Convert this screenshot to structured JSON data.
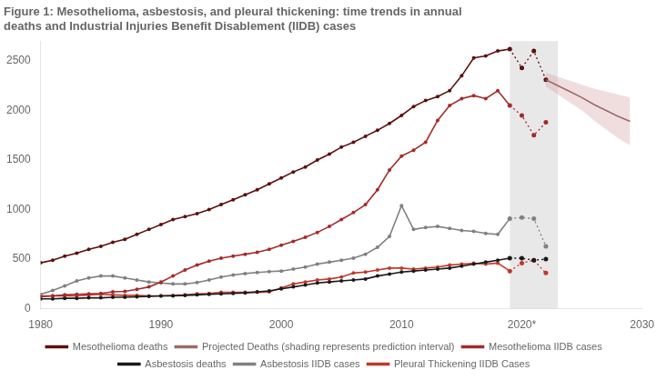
{
  "chart_data": {
    "type": "line",
    "title": [
      "Figure 1: Mesothelioma, asbestosis, and pleural thickening: time trends in annual",
      "deaths and Industrial Injuries Benefit Disablement (IIDB) cases"
    ],
    "xlim": [
      1980,
      2030
    ],
    "xticks": [
      1980,
      1990,
      2000,
      2010,
      {
        "value": 2020,
        "label": "2020*"
      },
      2030
    ],
    "ylim": [
      0,
      2700
    ],
    "yticks": [
      0,
      500,
      1000,
      1500,
      2000,
      2500
    ],
    "grid": false,
    "legend": "bottom",
    "span": {
      "x0": 2019,
      "x1": 2023,
      "color": "#d8d8d8"
    },
    "series": [
      {
        "name": "Mesothelioma deaths",
        "color": "#5C1010",
        "marker": "o",
        "line_style": "solid",
        "x": [
          1980,
          1981,
          1982,
          1983,
          1984,
          1985,
          1986,
          1987,
          1988,
          1989,
          1990,
          1991,
          1992,
          1993,
          1994,
          1995,
          1996,
          1997,
          1998,
          1999,
          2000,
          2001,
          2002,
          2003,
          2004,
          2005,
          2006,
          2007,
          2008,
          2009,
          2010,
          2011,
          2012,
          2013,
          2014,
          2015,
          2016,
          2017,
          2018,
          2019
        ],
        "values": [
          463,
          490,
          530,
          560,
          600,
          630,
          670,
          700,
          750,
          800,
          850,
          900,
          930,
          960,
          1000,
          1050,
          1100,
          1150,
          1200,
          1260,
          1320,
          1380,
          1430,
          1500,
          1560,
          1630,
          1680,
          1740,
          1800,
          1870,
          1950,
          2040,
          2100,
          2140,
          2200,
          2350,
          2530,
          2550,
          2600,
          2620
        ]
      },
      {
        "name": "Projected Deaths (shading represents prediction interval)",
        "color": "#9B6B6B",
        "line_style": "solid",
        "x": [
          2022,
          2023,
          2024,
          2025,
          2026,
          2027,
          2028,
          2029
        ],
        "values": [
          2310,
          2250,
          2190,
          2130,
          2060,
          2000,
          1940,
          1890
        ]
      },
      {
        "name": "Mesothelioma IIDB cases",
        "color": "#A52A2A",
        "marker": "o",
        "line_style": "solid",
        "x": [
          1980,
          1981,
          1982,
          1983,
          1984,
          1985,
          1986,
          1987,
          1988,
          1989,
          1990,
          1991,
          1992,
          1993,
          1994,
          1995,
          1996,
          1997,
          1998,
          1999,
          2000,
          2001,
          2002,
          2003,
          2004,
          2005,
          2006,
          2007,
          2008,
          2009,
          2010,
          2011,
          2012,
          2013,
          2014,
          2015,
          2016,
          2017,
          2018,
          2019
        ],
        "values": [
          120,
          130,
          140,
          145,
          150,
          155,
          170,
          175,
          195,
          220,
          270,
          330,
          390,
          440,
          480,
          510,
          530,
          550,
          570,
          600,
          640,
          680,
          720,
          770,
          830,
          900,
          970,
          1050,
          1200,
          1400,
          1540,
          1600,
          1680,
          1900,
          2050,
          2120,
          2150,
          2120,
          2200,
          2050
        ]
      },
      {
        "name": "Asbestosis deaths",
        "color": "#1a1a1a",
        "marker": "o",
        "line_style": "solid",
        "x": [
          1980,
          1981,
          1982,
          1983,
          1984,
          1985,
          1986,
          1987,
          1988,
          1989,
          1990,
          1991,
          1992,
          1993,
          1994,
          1995,
          1996,
          1997,
          1998,
          1999,
          2000,
          2001,
          2002,
          2003,
          2004,
          2005,
          2006,
          2007,
          2008,
          2009,
          2010,
          2011,
          2012,
          2013,
          2014,
          2015,
          2016,
          2017,
          2018,
          2019
        ],
        "values": [
          100,
          100,
          105,
          105,
          110,
          110,
          115,
          115,
          120,
          125,
          130,
          130,
          135,
          140,
          145,
          150,
          155,
          160,
          170,
          180,
          200,
          220,
          240,
          260,
          270,
          280,
          290,
          300,
          330,
          350,
          370,
          380,
          390,
          400,
          410,
          430,
          450,
          470,
          490,
          510
        ]
      },
      {
        "name": "Asbestosis IIDB cases",
        "color": "#808080",
        "marker": "o",
        "line_style": "solid",
        "x": [
          1980,
          1981,
          1982,
          1983,
          1984,
          1985,
          1986,
          1987,
          1988,
          1989,
          1990,
          1991,
          1992,
          1993,
          1994,
          1995,
          1996,
          1997,
          1998,
          1999,
          2000,
          2001,
          2002,
          2003,
          2004,
          2005,
          2006,
          2007,
          2008,
          2009,
          2010,
          2011,
          2012,
          2013,
          2014,
          2015,
          2016,
          2017,
          2018,
          2019
        ],
        "values": [
          145,
          185,
          230,
          280,
          310,
          330,
          330,
          310,
          290,
          270,
          260,
          250,
          250,
          265,
          290,
          320,
          340,
          355,
          365,
          375,
          380,
          400,
          420,
          450,
          470,
          490,
          510,
          550,
          620,
          730,
          1040,
          800,
          820,
          830,
          810,
          790,
          780,
          760,
          750,
          910
        ]
      },
      {
        "name": "Pleural Thickening IIDB Cases",
        "color": "#C0392B",
        "marker": "o",
        "line_style": "solid",
        "x": [
          1980,
          1981,
          1982,
          1983,
          1984,
          1985,
          1986,
          1987,
          1988,
          1989,
          1990,
          1991,
          1992,
          1993,
          1994,
          1995,
          1996,
          1997,
          1998,
          1999,
          2000,
          2001,
          2002,
          2003,
          2004,
          2005,
          2006,
          2007,
          2008,
          2009,
          2010,
          2011,
          2012,
          2013,
          2014,
          2015,
          2016,
          2017,
          2018,
          2019
        ],
        "values": [
          130,
          130,
          130,
          130,
          140,
          145,
          140,
          135,
          135,
          130,
          130,
          135,
          140,
          150,
          155,
          165,
          165,
          165,
          165,
          170,
          210,
          250,
          270,
          290,
          300,
          320,
          360,
          370,
          390,
          410,
          410,
          400,
          410,
          420,
          440,
          450,
          460,
          450,
          460,
          380
        ]
      },
      {
        "color": "#5C1010",
        "marker": "o",
        "line_style": "dotted",
        "x": [
          2019,
          2020,
          2021,
          2022
        ],
        "values": [
          2620,
          2430,
          2600,
          2310
        ]
      },
      {
        "color": "#A52A2A",
        "marker": "o",
        "line_style": "dotted",
        "x": [
          2019,
          2020,
          2021,
          2022
        ],
        "values": [
          2050,
          1950,
          1750,
          1880
        ]
      },
      {
        "color": "#1a1a1a",
        "marker": "o",
        "line_style": "dotted",
        "x": [
          2019,
          2020,
          2021,
          2022
        ],
        "values": [
          510,
          510,
          490,
          500
        ]
      },
      {
        "color": "#808080",
        "marker": "o",
        "line_style": "dotted",
        "x": [
          2019,
          2020,
          2021,
          2022
        ],
        "values": [
          910,
          920,
          910,
          630
        ]
      },
      {
        "color": "#C0392B",
        "marker": "o",
        "line_style": "dotted",
        "x": [
          2019,
          2020,
          2021,
          2022
        ],
        "values": [
          380,
          460,
          490,
          360
        ]
      },
      {
        "type": "band",
        "color": "#D4A0A0",
        "x": [
          2022,
          2023,
          2024,
          2025,
          2026,
          2027,
          2028,
          2029
        ],
        "lower": [
          2240,
          2160,
          2080,
          2000,
          1900,
          1810,
          1720,
          1650
        ],
        "upper": [
          2380,
          2340,
          2300,
          2260,
          2220,
          2190,
          2160,
          2130
        ]
      }
    ]
  }
}
